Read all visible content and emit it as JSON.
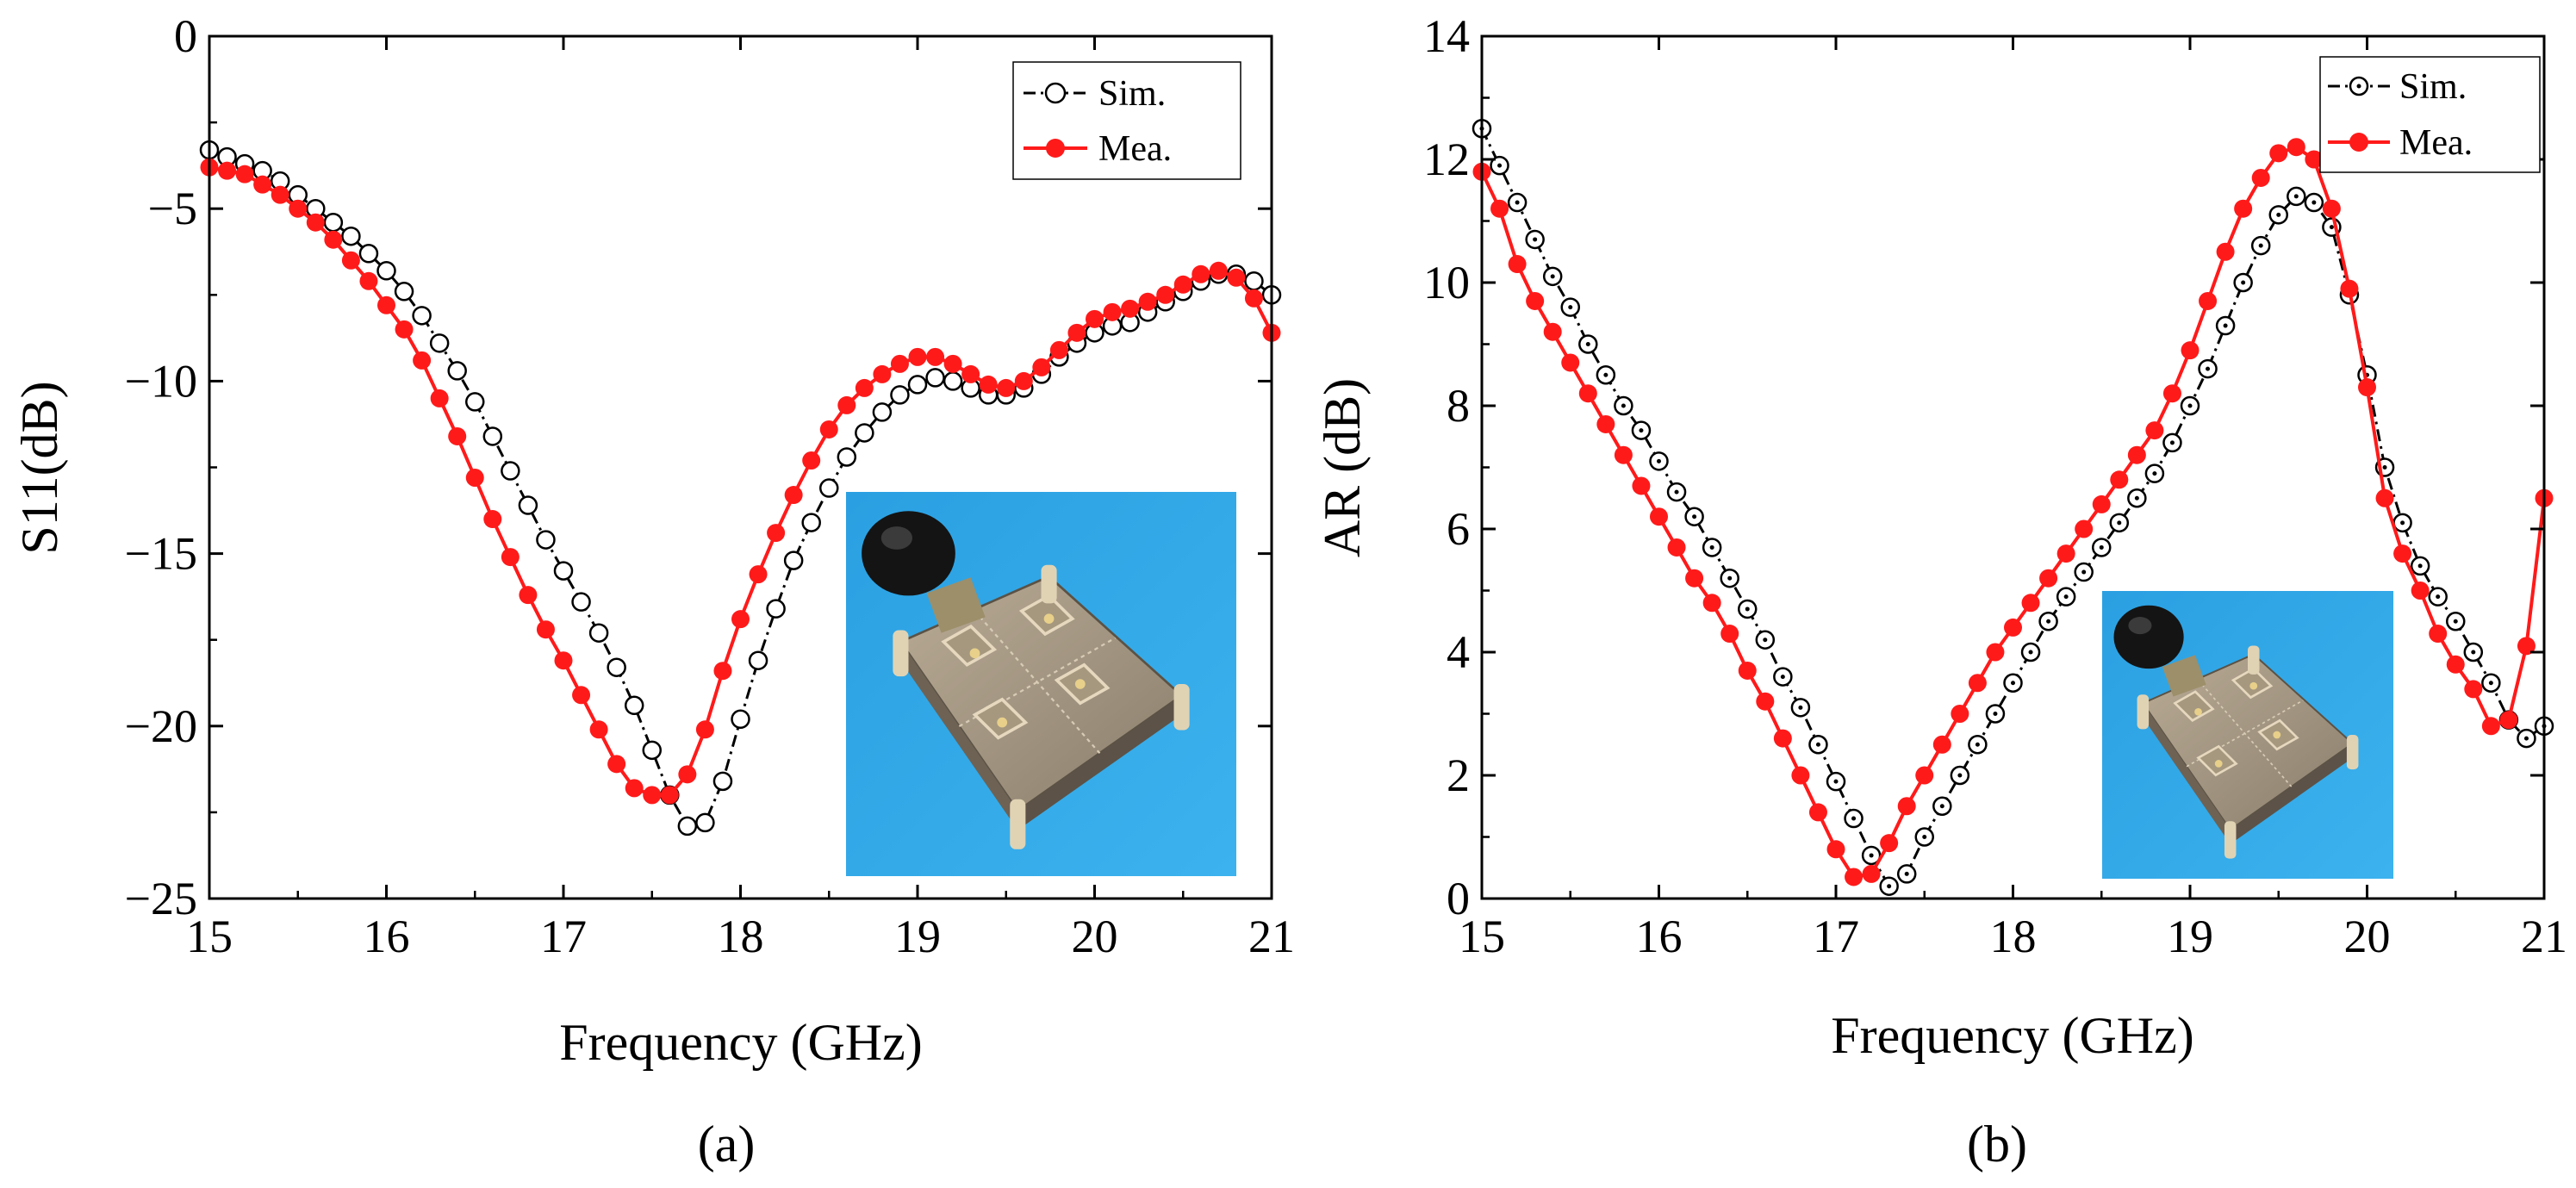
{
  "colors": {
    "sim": "#000000",
    "mea": "#ff1a1a",
    "background": "#ffffff",
    "photo_blue": "#2fa8e6"
  },
  "panels": [
    {
      "label": "(a)",
      "photo_icon": "antenna-prototype-photo"
    },
    {
      "label": "(b)",
      "photo_icon": "antenna-prototype-photo"
    }
  ],
  "chart_data": [
    {
      "type": "line",
      "xlabel": "Frequency (GHz)",
      "ylabel": "S11(dB)",
      "xlim": [
        15,
        21
      ],
      "ylim": [
        -25,
        0
      ],
      "xticks": [
        "15",
        "16",
        "17",
        "18",
        "19",
        "20",
        "21"
      ],
      "yticks": [
        "0",
        "−5",
        "−10",
        "−15",
        "−20",
        "−25"
      ],
      "xtick_values": [
        15,
        16,
        17,
        18,
        19,
        20,
        21
      ],
      "ytick_values": [
        0,
        -5,
        -10,
        -15,
        -20,
        -25
      ],
      "legend": [
        "Sim.",
        "Mea."
      ],
      "series": [
        {
          "name": "Sim.",
          "style": "dash-dot black with hollow circle markers",
          "x": [
            15.0,
            15.1,
            15.2,
            15.3,
            15.4,
            15.5,
            15.6,
            15.7,
            15.8,
            15.9,
            16.0,
            16.1,
            16.2,
            16.3,
            16.4,
            16.5,
            16.6,
            16.7,
            16.8,
            16.9,
            17.0,
            17.1,
            17.2,
            17.3,
            17.4,
            17.5,
            17.6,
            17.7,
            17.8,
            17.9,
            18.0,
            18.1,
            18.2,
            18.3,
            18.4,
            18.5,
            18.6,
            18.7,
            18.8,
            18.9,
            19.0,
            19.1,
            19.2,
            19.3,
            19.4,
            19.5,
            19.6,
            19.7,
            19.8,
            19.9,
            20.0,
            20.1,
            20.2,
            20.3,
            20.4,
            20.5,
            20.6,
            20.7,
            20.8,
            20.9,
            21.0
          ],
          "values": [
            -3.3,
            -3.5,
            -3.7,
            -3.9,
            -4.2,
            -4.6,
            -5.0,
            -5.4,
            -5.8,
            -6.3,
            -6.8,
            -7.4,
            -8.1,
            -8.9,
            -9.7,
            -10.6,
            -11.6,
            -12.6,
            -13.6,
            -14.6,
            -15.5,
            -16.4,
            -17.3,
            -18.3,
            -19.4,
            -20.7,
            -22.0,
            -22.9,
            -22.8,
            -21.6,
            -19.8,
            -18.1,
            -16.6,
            -15.2,
            -14.1,
            -13.1,
            -12.2,
            -11.5,
            -10.9,
            -10.4,
            -10.1,
            -9.9,
            -10.0,
            -10.2,
            -10.4,
            -10.4,
            -10.2,
            -9.8,
            -9.3,
            -8.9,
            -8.6,
            -8.4,
            -8.3,
            -8.0,
            -7.7,
            -7.4,
            -7.1,
            -6.9,
            -6.9,
            -7.1,
            -7.5
          ]
        },
        {
          "name": "Mea.",
          "style": "solid red with filled circle markers",
          "x": [
            15.0,
            15.1,
            15.2,
            15.3,
            15.4,
            15.5,
            15.6,
            15.7,
            15.8,
            15.9,
            16.0,
            16.1,
            16.2,
            16.3,
            16.4,
            16.5,
            16.6,
            16.7,
            16.8,
            16.9,
            17.0,
            17.1,
            17.2,
            17.3,
            17.4,
            17.5,
            17.6,
            17.7,
            17.8,
            17.9,
            18.0,
            18.1,
            18.2,
            18.3,
            18.4,
            18.5,
            18.6,
            18.7,
            18.8,
            18.9,
            19.0,
            19.1,
            19.2,
            19.3,
            19.4,
            19.5,
            19.6,
            19.7,
            19.8,
            19.9,
            20.0,
            20.1,
            20.2,
            20.3,
            20.4,
            20.5,
            20.6,
            20.7,
            20.8,
            20.9,
            21.0
          ],
          "values": [
            -3.8,
            -3.9,
            -4.0,
            -4.3,
            -4.6,
            -5.0,
            -5.4,
            -5.9,
            -6.5,
            -7.1,
            -7.8,
            -8.5,
            -9.4,
            -10.5,
            -11.6,
            -12.8,
            -14.0,
            -15.1,
            -16.2,
            -17.2,
            -18.1,
            -19.1,
            -20.1,
            -21.1,
            -21.8,
            -22.0,
            -22.0,
            -21.4,
            -20.1,
            -18.4,
            -16.9,
            -15.6,
            -14.4,
            -13.3,
            -12.3,
            -11.4,
            -10.7,
            -10.2,
            -9.8,
            -9.5,
            -9.3,
            -9.3,
            -9.5,
            -9.8,
            -10.1,
            -10.2,
            -10.0,
            -9.6,
            -9.1,
            -8.6,
            -8.2,
            -8.0,
            -7.9,
            -7.7,
            -7.5,
            -7.2,
            -6.9,
            -6.8,
            -7.0,
            -7.6,
            -8.6
          ]
        }
      ]
    },
    {
      "type": "line",
      "xlabel": "Frequency (GHz)",
      "ylabel": "AR (dB)",
      "xlim": [
        15,
        21
      ],
      "ylim": [
        0,
        14
      ],
      "xticks": [
        "15",
        "16",
        "17",
        "18",
        "19",
        "20",
        "21"
      ],
      "yticks": [
        "0",
        "2",
        "4",
        "6",
        "8",
        "10",
        "12",
        "14"
      ],
      "xtick_values": [
        15,
        16,
        17,
        18,
        19,
        20,
        21
      ],
      "ytick_values": [
        0,
        2,
        4,
        6,
        8,
        10,
        12,
        14
      ],
      "legend": [
        "Sim.",
        "Mea."
      ],
      "series": [
        {
          "name": "Sim.",
          "style": "dash-dot black with dotted circle markers",
          "x": [
            15.0,
            15.1,
            15.2,
            15.3,
            15.4,
            15.5,
            15.6,
            15.7,
            15.8,
            15.9,
            16.0,
            16.1,
            16.2,
            16.3,
            16.4,
            16.5,
            16.6,
            16.7,
            16.8,
            16.9,
            17.0,
            17.1,
            17.2,
            17.3,
            17.4,
            17.5,
            17.6,
            17.7,
            17.8,
            17.9,
            18.0,
            18.1,
            18.2,
            18.3,
            18.4,
            18.5,
            18.6,
            18.7,
            18.8,
            18.9,
            19.0,
            19.1,
            19.2,
            19.3,
            19.4,
            19.5,
            19.6,
            19.7,
            19.8,
            19.9,
            20.0,
            20.1,
            20.2,
            20.3,
            20.4,
            20.5,
            20.6,
            20.7,
            20.8,
            20.9,
            21.0
          ],
          "values": [
            12.5,
            11.9,
            11.3,
            10.7,
            10.1,
            9.6,
            9.0,
            8.5,
            8.0,
            7.6,
            7.1,
            6.6,
            6.2,
            5.7,
            5.2,
            4.7,
            4.2,
            3.6,
            3.1,
            2.5,
            1.9,
            1.3,
            0.7,
            0.2,
            0.4,
            1.0,
            1.5,
            2.0,
            2.5,
            3.0,
            3.5,
            4.0,
            4.5,
            4.9,
            5.3,
            5.7,
            6.1,
            6.5,
            6.9,
            7.4,
            8.0,
            8.6,
            9.3,
            10.0,
            10.6,
            11.1,
            11.4,
            11.3,
            10.9,
            9.8,
            8.5,
            7.0,
            6.1,
            5.4,
            4.9,
            4.5,
            4.0,
            3.5,
            2.9,
            2.6,
            2.8
          ]
        },
        {
          "name": "Mea.",
          "style": "solid red with filled circle markers",
          "x": [
            15.0,
            15.1,
            15.2,
            15.3,
            15.4,
            15.5,
            15.6,
            15.7,
            15.8,
            15.9,
            16.0,
            16.1,
            16.2,
            16.3,
            16.4,
            16.5,
            16.6,
            16.7,
            16.8,
            16.9,
            17.0,
            17.1,
            17.2,
            17.3,
            17.4,
            17.5,
            17.6,
            17.7,
            17.8,
            17.9,
            18.0,
            18.1,
            18.2,
            18.3,
            18.4,
            18.5,
            18.6,
            18.7,
            18.8,
            18.9,
            19.0,
            19.1,
            19.2,
            19.3,
            19.4,
            19.5,
            19.6,
            19.7,
            19.8,
            19.9,
            20.0,
            20.1,
            20.2,
            20.3,
            20.4,
            20.5,
            20.6,
            20.7,
            20.8,
            20.9,
            21.0
          ],
          "values": [
            11.8,
            11.2,
            10.3,
            9.7,
            9.2,
            8.7,
            8.2,
            7.7,
            7.2,
            6.7,
            6.2,
            5.7,
            5.2,
            4.8,
            4.3,
            3.7,
            3.2,
            2.6,
            2.0,
            1.4,
            0.8,
            0.35,
            0.4,
            0.9,
            1.5,
            2.0,
            2.5,
            3.0,
            3.5,
            4.0,
            4.4,
            4.8,
            5.2,
            5.6,
            6.0,
            6.4,
            6.8,
            7.2,
            7.6,
            8.2,
            8.9,
            9.7,
            10.5,
            11.2,
            11.7,
            12.1,
            12.2,
            12.0,
            11.2,
            9.9,
            8.3,
            6.5,
            5.6,
            5.0,
            4.3,
            3.8,
            3.4,
            2.8,
            2.9,
            4.1,
            6.5
          ]
        }
      ]
    }
  ]
}
